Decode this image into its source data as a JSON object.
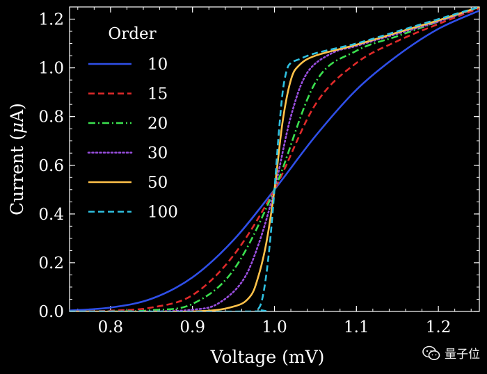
{
  "chart_data": {
    "type": "line",
    "xlabel": "Voltage (mV)",
    "ylabel": "Current (",
    "ylabel_symbol": "μ",
    "ylabel_unit": "A)",
    "xlim": [
      0.75,
      1.25
    ],
    "ylim": [
      0.0,
      1.25
    ],
    "x_ticks": [
      0.8,
      0.9,
      1.0,
      1.1,
      1.2
    ],
    "x_tick_labels": [
      "0.8",
      "0.9",
      "1.0",
      "1.1",
      "1.2"
    ],
    "y_ticks": [
      0.0,
      0.2,
      0.4,
      0.6,
      0.8,
      1.0,
      1.2
    ],
    "y_tick_labels": [
      "0.0",
      "0.2",
      "0.4",
      "0.6",
      "0.8",
      "1.0",
      "1.2"
    ],
    "grid": false,
    "legend": {
      "title": "Order",
      "position": "top-left"
    },
    "series": [
      {
        "name": "10",
        "color": "#2f4fe8",
        "style": "solid",
        "x": [
          0.75,
          0.8,
          0.85,
          0.9,
          0.95,
          1.0,
          1.05,
          1.1,
          1.15,
          1.2,
          1.25
        ],
        "y": [
          0.004,
          0.016,
          0.052,
          0.14,
          0.293,
          0.5,
          0.72,
          0.91,
          1.05,
          1.16,
          1.235
        ]
      },
      {
        "name": "15",
        "color": "#e02a2a",
        "style": "dashed",
        "x": [
          0.75,
          0.8,
          0.85,
          0.9,
          0.95,
          1.0,
          1.05,
          1.1,
          1.15,
          1.2,
          1.25
        ],
        "y": [
          0.0,
          0.003,
          0.016,
          0.067,
          0.23,
          0.5,
          0.85,
          1.02,
          1.11,
          1.18,
          1.245
        ]
      },
      {
        "name": "20",
        "color": "#3be04f",
        "style": "dashdot",
        "x": [
          0.75,
          0.8,
          0.85,
          0.9,
          0.95,
          1.0,
          1.05,
          1.1,
          1.15,
          1.2,
          1.25
        ],
        "y": [
          0.0,
          0.0,
          0.005,
          0.031,
          0.17,
          0.5,
          0.94,
          1.07,
          1.13,
          1.19,
          1.25
        ]
      },
      {
        "name": "30",
        "color": "#9a4fe0",
        "style": "dotted",
        "x": [
          0.75,
          0.85,
          0.9,
          0.93,
          0.96,
          0.98,
          1.0,
          1.02,
          1.04,
          1.07,
          1.1,
          1.15,
          1.2,
          1.25
        ],
        "y": [
          0.0,
          0.0,
          0.007,
          0.03,
          0.12,
          0.27,
          0.5,
          0.8,
          0.98,
          1.06,
          1.09,
          1.14,
          1.19,
          1.25
        ]
      },
      {
        "name": "50",
        "color": "#ffc24a",
        "style": "solid",
        "x": [
          0.75,
          0.9,
          0.95,
          0.97,
          0.98,
          0.99,
          1.0,
          1.01,
          1.02,
          1.03,
          1.05,
          1.1,
          1.15,
          1.2,
          1.25
        ],
        "y": [
          0.0,
          0.0,
          0.02,
          0.06,
          0.14,
          0.28,
          0.5,
          0.78,
          0.95,
          1.01,
          1.05,
          1.095,
          1.145,
          1.195,
          1.25
        ]
      },
      {
        "name": "100",
        "color": "#2fc0e0",
        "style": "dashed",
        "x": [
          0.75,
          0.97,
          0.98,
          0.985,
          0.99,
          0.995,
          1.0,
          1.005,
          1.01,
          1.015,
          1.02,
          1.03,
          1.05,
          1.1,
          1.15,
          1.2,
          1.25
        ],
        "y": [
          0.0,
          0.0,
          0.01,
          0.05,
          0.15,
          0.3,
          0.5,
          0.72,
          0.9,
          0.99,
          1.02,
          1.035,
          1.06,
          1.1,
          1.15,
          1.2,
          1.25
        ]
      }
    ]
  },
  "watermark": {
    "text": "量子位",
    "icon": "wechat-icon"
  }
}
